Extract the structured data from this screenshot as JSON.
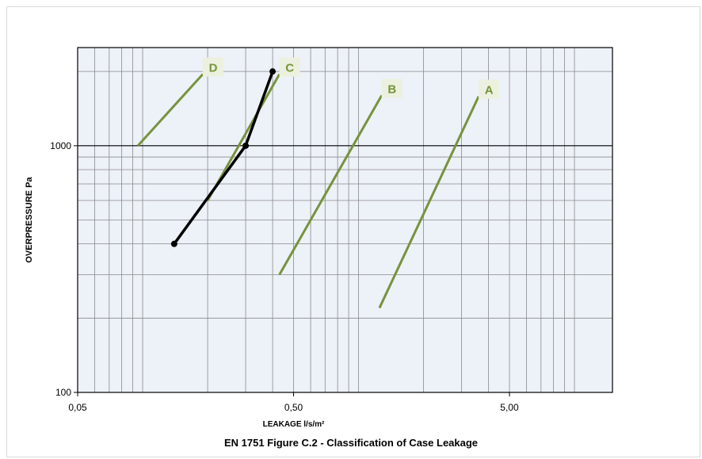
{
  "chart_data": {
    "type": "line",
    "title": "EN 1751 Figure C.2 - Classification of Case Leakage",
    "xlabel": "LEAKAGE l/s/m²",
    "ylabel": "OVERPRESSURE Pa",
    "x_scale": "log",
    "y_scale": "log",
    "xlim": [
      0.05,
      15
    ],
    "ylim": [
      100,
      2500
    ],
    "x_tick_labels": [
      {
        "value": 0.05,
        "label": "0,05"
      },
      {
        "value": 0.5,
        "label": "0,50"
      },
      {
        "value": 5,
        "label": "5,00"
      }
    ],
    "y_tick_labels": [
      {
        "value": 100,
        "label": "100"
      },
      {
        "value": 1000,
        "label": "1000"
      }
    ],
    "grid": true,
    "class_lines": [
      {
        "label": "A",
        "color": "#77933c",
        "points": [
          [
            1.25,
            220
          ],
          [
            3.6,
            1585
          ]
        ]
      },
      {
        "label": "B",
        "color": "#77933c",
        "points": [
          [
            0.43,
            300
          ],
          [
            1.28,
            1600
          ]
        ]
      },
      {
        "label": "C",
        "color": "#77933c",
        "points": [
          [
            0.2,
            600
          ],
          [
            0.43,
            1950
          ]
        ]
      },
      {
        "label": "D",
        "color": "#77933c",
        "points": [
          [
            0.095,
            1000
          ],
          [
            0.19,
            1950
          ]
        ]
      }
    ],
    "series": [
      {
        "color": "#000000",
        "points": [
          [
            0.14,
            400
          ],
          [
            0.3,
            1000
          ],
          [
            0.4,
            2000
          ]
        ]
      }
    ]
  }
}
